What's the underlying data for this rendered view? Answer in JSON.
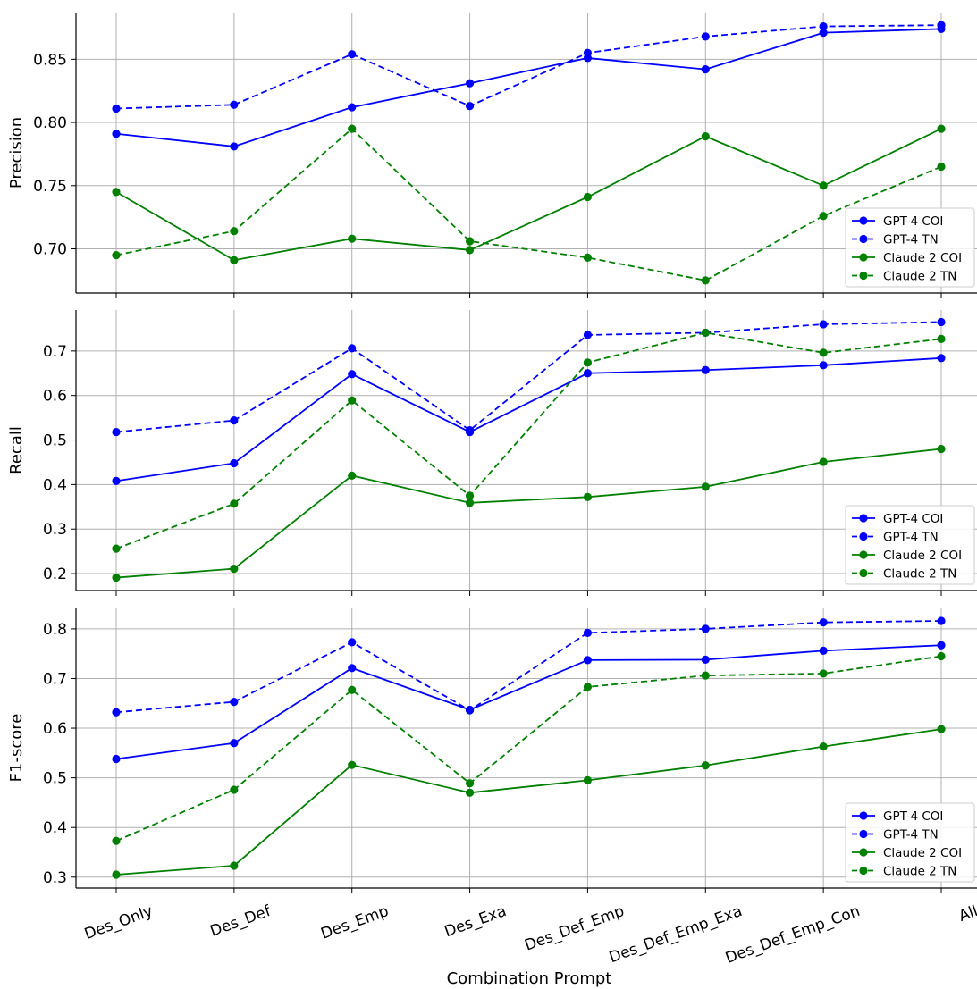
{
  "chart_data": {
    "type": "line",
    "xlabel": "Combination Prompt",
    "categories": [
      "Des_Only",
      "Des_Def",
      "Des_Emp",
      "Des_Exa",
      "Des_Def_Emp",
      "Des_Def_Emp_Exa",
      "Des_Def_Emp_Con",
      "All"
    ],
    "legend_position": "lower-right",
    "grid": true,
    "colors": {
      "gpt4": "#0000ff",
      "claude2": "#008000"
    },
    "subplots": [
      {
        "ylabel": "Precision",
        "ylim": [
          0.665,
          0.887
        ],
        "yticks": [
          0.7,
          0.75,
          0.8,
          0.85
        ],
        "ytick_labels": [
          "0.70",
          "0.75",
          "0.80",
          "0.85"
        ],
        "series": [
          {
            "name": "GPT-4 COI",
            "color": "#0000ff",
            "dash": false,
            "values": [
              0.791,
              0.781,
              0.812,
              0.831,
              0.851,
              0.842,
              0.871,
              0.874
            ]
          },
          {
            "name": "GPT-4 TN",
            "color": "#0000ff",
            "dash": true,
            "values": [
              0.811,
              0.814,
              0.854,
              0.813,
              0.855,
              0.868,
              0.876,
              0.877
            ]
          },
          {
            "name": "Claude 2 COI",
            "color": "#008000",
            "dash": false,
            "values": [
              0.745,
              0.691,
              0.708,
              0.699,
              0.741,
              0.789,
              0.75,
              0.795
            ]
          },
          {
            "name": "Claude 2 TN",
            "color": "#008000",
            "dash": true,
            "values": [
              0.695,
              0.714,
              0.795,
              0.706,
              0.693,
              0.675,
              0.726,
              0.765
            ]
          }
        ]
      },
      {
        "ylabel": "Recall",
        "ylim": [
          0.162,
          0.792
        ],
        "yticks": [
          0.2,
          0.3,
          0.4,
          0.5,
          0.6,
          0.7
        ],
        "ytick_labels": [
          "0.2",
          "0.3",
          "0.4",
          "0.5",
          "0.6",
          "0.7"
        ],
        "series": [
          {
            "name": "GPT-4 COI",
            "color": "#0000ff",
            "dash": false,
            "values": [
              0.408,
              0.448,
              0.648,
              0.518,
              0.65,
              0.657,
              0.668,
              0.684
            ]
          },
          {
            "name": "GPT-4 TN",
            "color": "#0000ff",
            "dash": true,
            "values": [
              0.518,
              0.544,
              0.706,
              0.522,
              0.736,
              0.741,
              0.76,
              0.765
            ]
          },
          {
            "name": "Claude 2 COI",
            "color": "#008000",
            "dash": false,
            "values": [
              0.191,
              0.211,
              0.42,
              0.359,
              0.372,
              0.395,
              0.451,
              0.48
            ]
          },
          {
            "name": "Claude 2 TN",
            "color": "#008000",
            "dash": true,
            "values": [
              0.256,
              0.357,
              0.589,
              0.375,
              0.674,
              0.741,
              0.696,
              0.727
            ]
          }
        ]
      },
      {
        "ylabel": "F1-score",
        "ylim": [
          0.278,
          0.843
        ],
        "yticks": [
          0.3,
          0.4,
          0.5,
          0.6,
          0.7,
          0.8
        ],
        "ytick_labels": [
          "0.3",
          "0.4",
          "0.5",
          "0.6",
          "0.7",
          "0.8"
        ],
        "series": [
          {
            "name": "GPT-4 COI",
            "color": "#0000ff",
            "dash": false,
            "values": [
              0.538,
              0.57,
              0.721,
              0.637,
              0.737,
              0.738,
              0.756,
              0.767
            ]
          },
          {
            "name": "GPT-4 TN",
            "color": "#0000ff",
            "dash": true,
            "values": [
              0.632,
              0.653,
              0.773,
              0.636,
              0.792,
              0.8,
              0.813,
              0.816
            ]
          },
          {
            "name": "Claude 2 COI",
            "color": "#008000",
            "dash": false,
            "values": [
              0.305,
              0.323,
              0.526,
              0.47,
              0.495,
              0.525,
              0.563,
              0.598
            ]
          },
          {
            "name": "Claude 2 TN",
            "color": "#008000",
            "dash": true,
            "values": [
              0.373,
              0.476,
              0.677,
              0.489,
              0.683,
              0.706,
              0.71,
              0.745
            ]
          }
        ]
      }
    ]
  }
}
